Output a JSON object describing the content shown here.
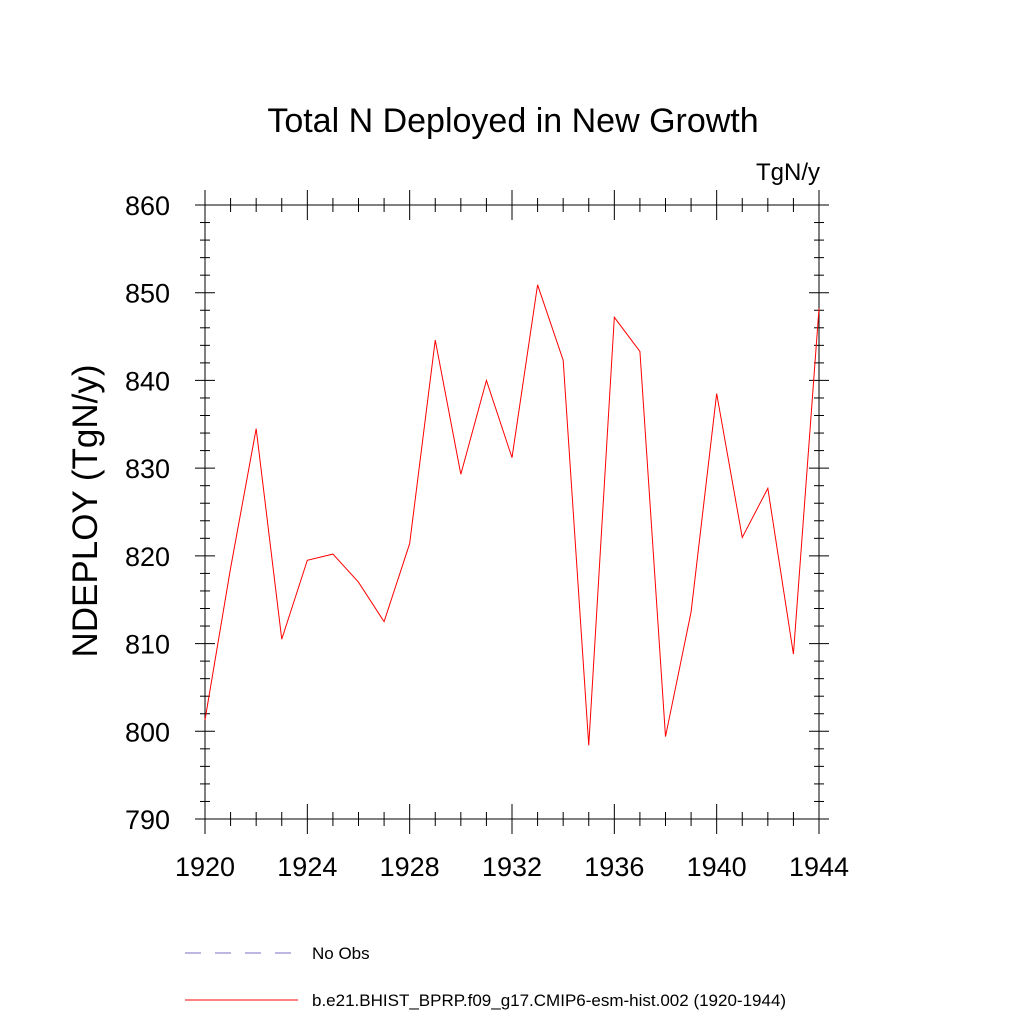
{
  "chart_data": {
    "type": "line",
    "title": "Total N Deployed in New Growth",
    "units": "TgN/y",
    "ylabel": "NDEPLOY  (TgN/y)",
    "xlabel": "",
    "xlim": [
      1920,
      1944
    ],
    "ylim": [
      790,
      860
    ],
    "x_ticks": [
      1920,
      1924,
      1928,
      1932,
      1936,
      1940,
      1944
    ],
    "y_ticks": [
      790,
      800,
      810,
      820,
      830,
      840,
      850,
      860
    ],
    "grid": false,
    "legend_position": "bottom",
    "series": [
      {
        "name": "b.e21.BHIST_BPRP.f09_g17.CMIP6-esm-hist.002 (1920-1944)",
        "color": "#ff0000",
        "style": "solid",
        "x": [
          1920,
          1921,
          1922,
          1923,
          1924,
          1925,
          1926,
          1927,
          1928,
          1929,
          1930,
          1931,
          1932,
          1933,
          1934,
          1935,
          1936,
          1937,
          1938,
          1939,
          1940,
          1941,
          1942,
          1943,
          1944
        ],
        "y": [
          801.3,
          818.6,
          834.5,
          810.5,
          819.5,
          820.2,
          817.0,
          812.5,
          821.4,
          844.6,
          829.3,
          840.0,
          831.2,
          850.9,
          842.3,
          798.4,
          847.2,
          843.3,
          799.4,
          813.6,
          838.5,
          822.1,
          827.7,
          808.8,
          848.2
        ]
      },
      {
        "name": "No Obs",
        "color": "#7b6fc4",
        "style": "dashed",
        "x": [],
        "y": []
      }
    ]
  }
}
